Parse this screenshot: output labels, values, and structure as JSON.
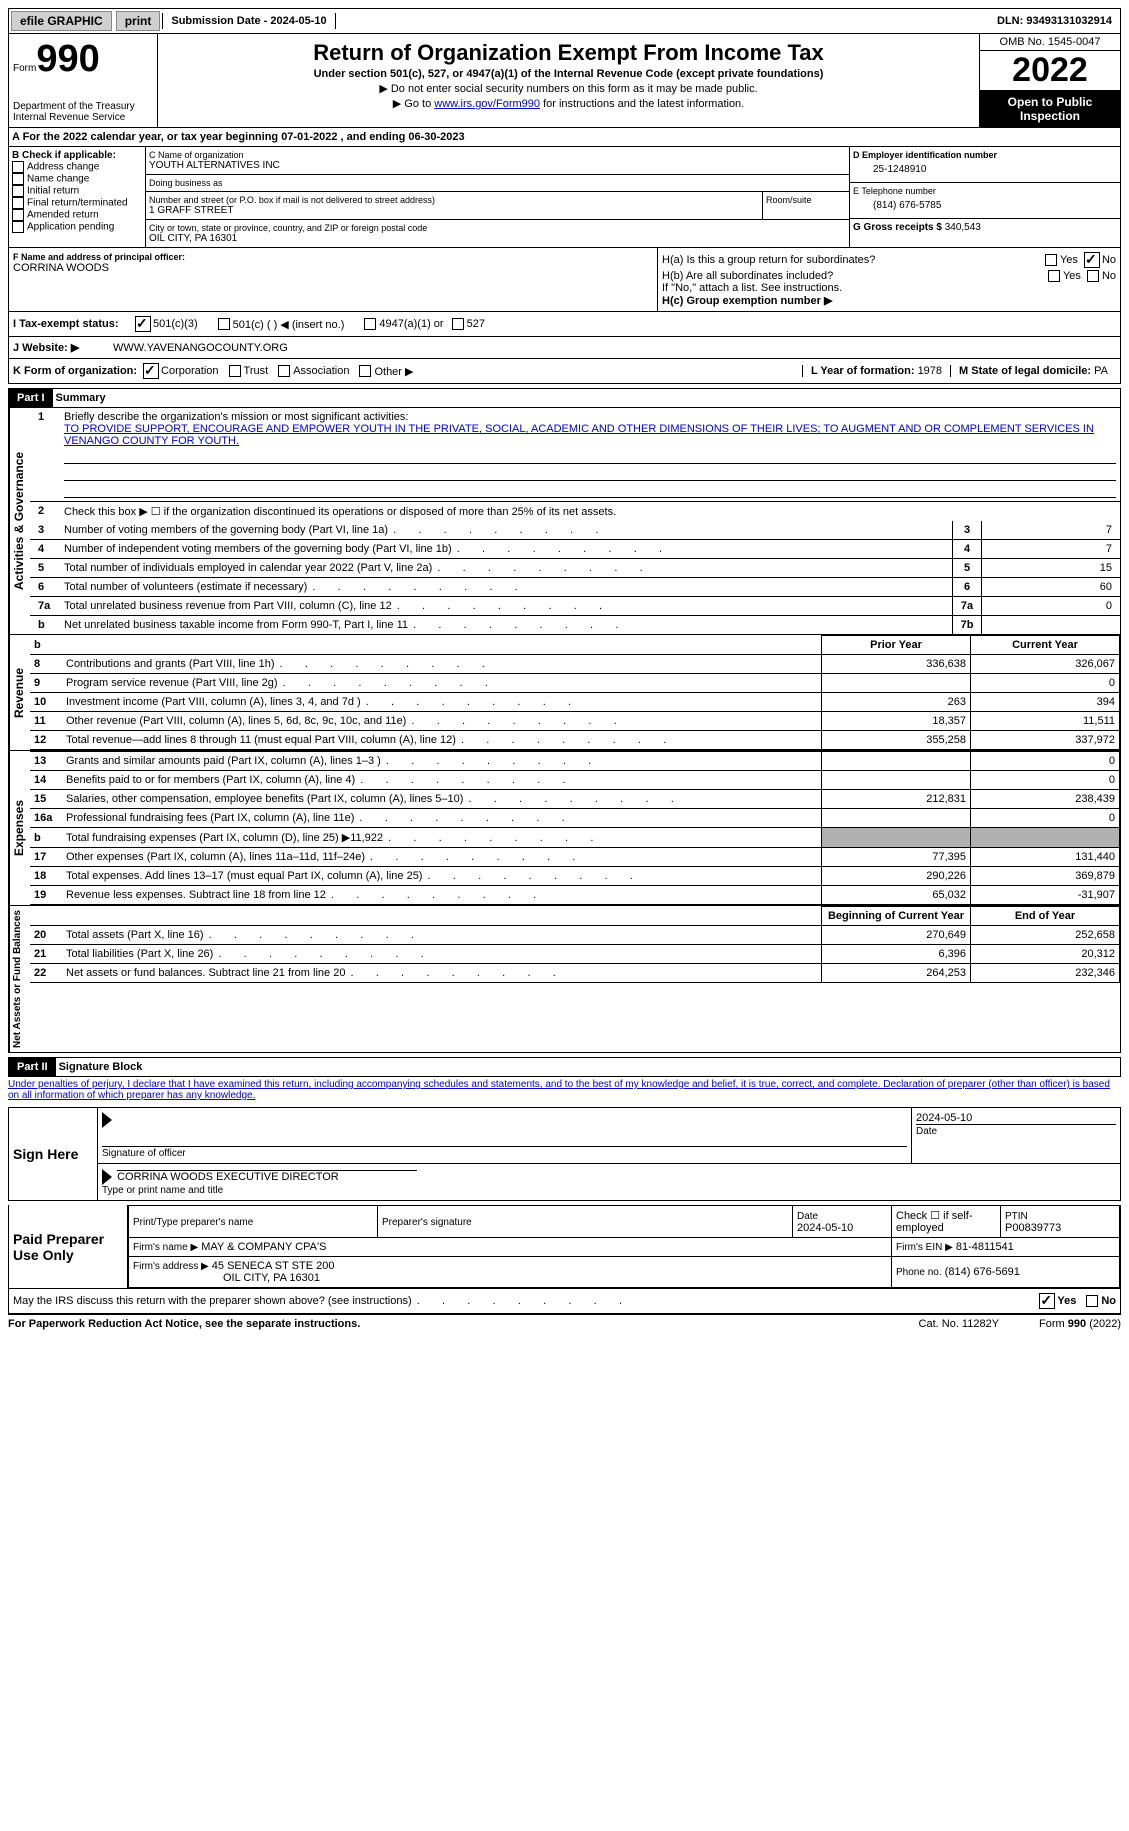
{
  "colors": {
    "text": "#000000",
    "bg": "#ffffff",
    "link": "#0000cc",
    "button_bg": "#d0d0d0",
    "shade": "#b0b0b0",
    "black": "#000000"
  },
  "topbar": {
    "efile": "efile GRAPHIC",
    "print": "print",
    "submission": "Submission Date - 2024-05-10",
    "dln": "DLN: 93493131032914"
  },
  "header": {
    "form_word": "Form",
    "form_number": "990",
    "title": "Return of Organization Exempt From Income Tax",
    "subtitle": "Under section 501(c), 527, or 4947(a)(1) of the Internal Revenue Code (except private foundations)",
    "note1": "▶ Do not enter social security numbers on this form as it may be made public.",
    "note2_pre": "▶ Go to ",
    "note2_link": "www.irs.gov/Form990",
    "note2_post": " for instructions and the latest information.",
    "dept": "Department of the Treasury",
    "irs": "Internal Revenue Service",
    "omb": "OMB No. 1545-0047",
    "year": "2022",
    "open": "Open to Public Inspection"
  },
  "line_a": "A For the 2022 calendar year, or tax year beginning 07-01-2022   , and ending 06-30-2023",
  "section_b": {
    "label": "B Check if applicable:",
    "opts": [
      "Address change",
      "Name change",
      "Initial return",
      "Final return/terminated",
      "Amended return",
      "Application pending"
    ]
  },
  "section_c": {
    "name_label": "C Name of organization",
    "name": "YOUTH ALTERNATIVES INC",
    "dba_label": "Doing business as",
    "dba": "",
    "street_label": "Number and street (or P.O. box if mail is not delivered to street address)",
    "room_label": "Room/suite",
    "street": "1 GRAFF STREET",
    "city_label": "City or town, state or province, country, and ZIP or foreign postal code",
    "city": "OIL CITY, PA  16301"
  },
  "section_d": {
    "label": "D Employer identification number",
    "ein": "25-1248910"
  },
  "section_e": {
    "label": "E Telephone number",
    "phone": "(814) 676-5785"
  },
  "section_g": {
    "label": "G Gross receipts $",
    "amount": "340,543"
  },
  "section_f": {
    "label": "F  Name and address of principal officer:",
    "name": "CORRINA WOODS"
  },
  "section_h": {
    "a": "H(a)  Is this a group return for subordinates?",
    "a_yes": "Yes",
    "a_no": "No",
    "a_no_checked": true,
    "b": "H(b)  Are all subordinates included?",
    "b_note": "If \"No,\" attach a list. See instructions.",
    "c": "H(c)  Group exemption number ▶"
  },
  "status": {
    "label": "I   Tax-exempt status:",
    "o1": "501(c)(3)",
    "o1_checked": true,
    "o2": "501(c) (  ) ◀ (insert no.)",
    "o3": "4947(a)(1) or",
    "o4": "527"
  },
  "website": {
    "label": "J   Website: ▶",
    "url": "WWW.YAVENANGOCOUNTY.ORG"
  },
  "section_k": {
    "label": "K Form of organization:",
    "corp": "Corporation",
    "corp_checked": true,
    "trust": "Trust",
    "assoc": "Association",
    "other": "Other ▶"
  },
  "section_l": {
    "label": "L Year of formation:",
    "val": "1978"
  },
  "section_m": {
    "label": "M State of legal domicile:",
    "val": "PA"
  },
  "partI": {
    "hdr": "Part I",
    "title": "Summary",
    "vtab_activities": "Activities & Governance",
    "vtab_revenue": "Revenue",
    "vtab_expenses": "Expenses",
    "vtab_net": "Net Assets or Fund Balances",
    "l1_label": "Briefly describe the organization's mission or most significant activities:",
    "l1_text": "TO PROVIDE SUPPORT, ENCOURAGE AND EMPOWER YOUTH IN THE PRIVATE, SOCIAL, ACADEMIC AND OTHER DIMENSIONS OF THEIR LIVES; TO AUGMENT AND OR COMPLEMENT SERVICES IN VENANGO COUNTY FOR YOUTH.",
    "l2": "Check this box ▶ ☐  if the organization discontinued its operations or disposed of more than 25% of its net assets.",
    "rows_ag": [
      {
        "n": "3",
        "t": "Number of voting members of the governing body (Part VI, line 1a)",
        "box": "3",
        "v": "7"
      },
      {
        "n": "4",
        "t": "Number of independent voting members of the governing body (Part VI, line 1b)",
        "box": "4",
        "v": "7"
      },
      {
        "n": "5",
        "t": "Total number of individuals employed in calendar year 2022 (Part V, line 2a)",
        "box": "5",
        "v": "15"
      },
      {
        "n": "6",
        "t": "Total number of volunteers (estimate if necessary)",
        "box": "6",
        "v": "60"
      },
      {
        "n": "7a",
        "t": "Total unrelated business revenue from Part VIII, column (C), line 12",
        "box": "7a",
        "v": "0"
      },
      {
        "n": "b",
        "t": "Net unrelated business taxable income from Form 990-T, Part I, line 11",
        "box": "7b",
        "v": ""
      }
    ],
    "col_py": "Prior Year",
    "col_cy": "Current Year",
    "revenue_rows": [
      {
        "n": "8",
        "t": "Contributions and grants (Part VIII, line 1h)",
        "py": "336,638",
        "cy": "326,067"
      },
      {
        "n": "9",
        "t": "Program service revenue (Part VIII, line 2g)",
        "py": "",
        "cy": "0"
      },
      {
        "n": "10",
        "t": "Investment income (Part VIII, column (A), lines 3, 4, and 7d )",
        "py": "263",
        "cy": "394"
      },
      {
        "n": "11",
        "t": "Other revenue (Part VIII, column (A), lines 5, 6d, 8c, 9c, 10c, and 11e)",
        "py": "18,357",
        "cy": "11,511"
      },
      {
        "n": "12",
        "t": "Total revenue—add lines 8 through 11 (must equal Part VIII, column (A), line 12)",
        "py": "355,258",
        "cy": "337,972"
      }
    ],
    "expense_rows": [
      {
        "n": "13",
        "t": "Grants and similar amounts paid (Part IX, column (A), lines 1–3 )",
        "py": "",
        "cy": "0"
      },
      {
        "n": "14",
        "t": "Benefits paid to or for members (Part IX, column (A), line 4)",
        "py": "",
        "cy": "0"
      },
      {
        "n": "15",
        "t": "Salaries, other compensation, employee benefits (Part IX, column (A), lines 5–10)",
        "py": "212,831",
        "cy": "238,439"
      },
      {
        "n": "16a",
        "t": "Professional fundraising fees (Part IX, column (A), line 11e)",
        "py": "",
        "cy": "0"
      },
      {
        "n": "b",
        "t": "Total fundraising expenses (Part IX, column (D), line 25) ▶11,922",
        "py": "SHADE",
        "cy": "SHADE"
      },
      {
        "n": "17",
        "t": "Other expenses (Part IX, column (A), lines 11a–11d, 11f–24e)",
        "py": "77,395",
        "cy": "131,440"
      },
      {
        "n": "18",
        "t": "Total expenses. Add lines 13–17 (must equal Part IX, column (A), line 25)",
        "py": "290,226",
        "cy": "369,879"
      },
      {
        "n": "19",
        "t": "Revenue less expenses. Subtract line 18 from line 12",
        "py": "65,032",
        "cy": "-31,907"
      }
    ],
    "col_boc": "Beginning of Current Year",
    "col_eoy": "End of Year",
    "net_rows": [
      {
        "n": "20",
        "t": "Total assets (Part X, line 16)",
        "py": "270,649",
        "cy": "252,658"
      },
      {
        "n": "21",
        "t": "Total liabilities (Part X, line 26)",
        "py": "6,396",
        "cy": "20,312"
      },
      {
        "n": "22",
        "t": "Net assets or fund balances. Subtract line 21 from line 20",
        "py": "264,253",
        "cy": "232,346"
      }
    ]
  },
  "partII": {
    "hdr": "Part II",
    "title": "Signature Block",
    "perjury": "Under penalties of perjury, I declare that I have examined this return, including accompanying schedules and statements, and to the best of my knowledge and belief, it is true, correct, and complete. Declaration of preparer (other than officer) is based on all information of which preparer has any knowledge.",
    "sign_here": "Sign Here",
    "sig_officer": "Signature of officer",
    "sig_date": "2024-05-10",
    "date_label": "Date",
    "officer_name": "CORRINA WOODS EXECUTIVE DIRECTOR",
    "type_name": "Type or print name and title",
    "paid_prep": "Paid Preparer Use Only",
    "pp_name_label": "Print/Type preparer's name",
    "pp_sig_label": "Preparer's signature",
    "pp_date_label": "Date",
    "pp_date": "2024-05-10",
    "pp_check": "Check ☐ if self-employed",
    "ptin_label": "PTIN",
    "ptin": "P00839773",
    "firm_name_label": "Firm's name    ▶",
    "firm_name": "MAY & COMPANY CPA'S",
    "firm_ein_label": "Firm's EIN ▶",
    "firm_ein": "81-4811541",
    "firm_addr_label": "Firm's address ▶",
    "firm_addr1": "45 SENECA ST STE 200",
    "firm_addr2": "OIL CITY, PA  16301",
    "phone_label": "Phone no.",
    "phone": "(814) 676-5691",
    "discuss": "May the IRS discuss this return with the preparer shown above? (see instructions)",
    "discuss_yes": "Yes",
    "discuss_yes_checked": true,
    "discuss_no": "No"
  },
  "footer": {
    "pra": "For Paperwork Reduction Act Notice, see the separate instructions.",
    "cat": "Cat. No. 11282Y",
    "form": "Form 990 (2022)"
  }
}
